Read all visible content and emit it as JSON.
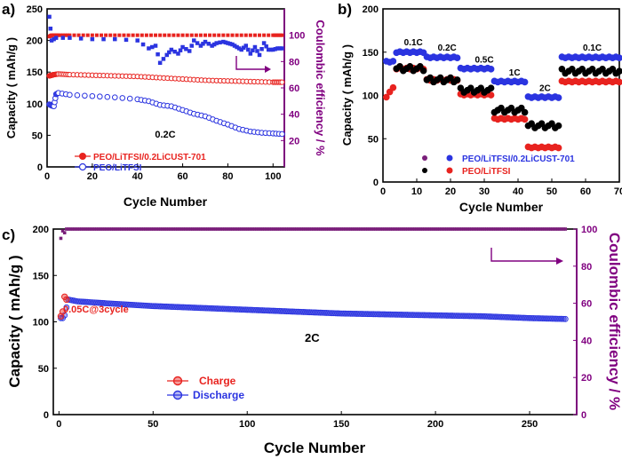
{
  "colors": {
    "red": "#e8231f",
    "blue": "#2b34e0",
    "purple": "#7a1f7a",
    "black": "#000000"
  },
  "chart_data": [
    {
      "panel": "a)",
      "type": "scatter",
      "xlabel": "Cycle Number",
      "ylabel": "Capacity ( mAh/g )",
      "y2label": "Coulombic efficiency / %",
      "xlim": [
        0,
        105
      ],
      "ylim": [
        0,
        250
      ],
      "y2lim": [
        0,
        120
      ],
      "xticks": [
        0,
        20,
        40,
        60,
        80,
        100
      ],
      "yticks": [
        0,
        50,
        100,
        150,
        200,
        250
      ],
      "y2ticks": [
        20,
        40,
        60,
        80,
        100
      ],
      "annotation": "0.2C",
      "legend": [
        "PEO/LiTFSI/0.2LiCUST-701",
        "PEO/LiTFSI"
      ],
      "series": [
        {
          "name": "PEO/LiTFSI/0.2LiCUST-701",
          "axis": "left",
          "marker": "circle",
          "color": "red",
          "x": [
            1,
            2,
            3,
            5,
            10,
            20,
            30,
            40,
            50,
            60,
            70,
            80,
            90,
            100,
            104
          ],
          "y": [
            144,
            145,
            146,
            147,
            146,
            145,
            144,
            143,
            141,
            139,
            137,
            136,
            135,
            134,
            134
          ]
        },
        {
          "name": "PEO/LiTFSI",
          "axis": "left",
          "marker": "circle",
          "color": "blue",
          "x": [
            1,
            2,
            3,
            4,
            5,
            10,
            20,
            30,
            40,
            45,
            50,
            55,
            60,
            65,
            70,
            75,
            80,
            85,
            90,
            95,
            100,
            104
          ],
          "y": [
            99,
            97,
            96,
            115,
            117,
            114,
            112,
            110,
            107,
            104,
            98,
            96,
            90,
            84,
            80,
            73,
            67,
            60,
            56,
            54,
            53,
            52
          ]
        },
        {
          "name": "CE PEO/LiTFSI/0.2LiCUST-701",
          "axis": "right",
          "marker": "square",
          "color": "red",
          "x": [
            1,
            2,
            5,
            10,
            20,
            30,
            40,
            50,
            60,
            70,
            80,
            90,
            100,
            104
          ],
          "y": [
            99,
            100,
            100,
            100,
            100,
            100,
            100,
            100,
            100,
            100,
            100,
            100,
            100,
            100
          ]
        },
        {
          "name": "CE PEO/LiTFSI",
          "axis": "right",
          "marker": "square",
          "color": "blue",
          "x": [
            1,
            2,
            4,
            10,
            20,
            30,
            40,
            45,
            48,
            50,
            53,
            55,
            58,
            60,
            63,
            65,
            68,
            70,
            73,
            75,
            78,
            80,
            82,
            84,
            86,
            88,
            90,
            92,
            94,
            96,
            98,
            100,
            102,
            104
          ],
          "y": [
            114,
            96,
            98,
            98,
            97,
            97,
            96,
            90,
            92,
            79,
            85,
            89,
            86,
            91,
            88,
            96,
            92,
            95,
            92,
            94,
            95,
            94,
            93,
            91,
            89,
            92,
            86,
            91,
            85,
            94,
            89,
            89,
            90,
            90
          ]
        }
      ]
    },
    {
      "panel": "b)",
      "type": "scatter",
      "xlabel": "Cycle Number",
      "ylabel": "Capacity ( mAh/g )",
      "xlim": [
        0,
        70
      ],
      "ylim": [
        0,
        200
      ],
      "xticks": [
        0,
        10,
        20,
        30,
        40,
        50,
        60,
        70
      ],
      "yticks": [
        0,
        50,
        100,
        150,
        200
      ],
      "rate_labels": [
        {
          "text": "0.1C",
          "x": 9,
          "y": 158
        },
        {
          "text": "0.2C",
          "x": 19,
          "y": 152
        },
        {
          "text": "0.5C",
          "x": 30,
          "y": 138
        },
        {
          "text": "1C",
          "x": 39,
          "y": 123
        },
        {
          "text": "2C",
          "x": 48,
          "y": 105
        },
        {
          "text": "0.1C",
          "x": 62,
          "y": 152
        }
      ],
      "legend": [
        "PEO/LiTFSI/0.2LiCUST-701",
        "PEO/LiTFSI"
      ],
      "series": [
        {
          "name": "PEO/LiTFSI/0.2LiCUST-701 charge",
          "marker": "circle",
          "color": "blue",
          "segments": [
            [
              1,
              3,
              139
            ],
            [
              4,
              12,
              150
            ],
            [
              13,
              22,
              144
            ],
            [
              23,
              32,
              131
            ],
            [
              33,
              42,
              116
            ],
            [
              43,
              52,
              98
            ],
            [
              53,
              70,
              144
            ]
          ]
        },
        {
          "name": "PEO/LiTFSI/0.2LiCUST-701 discharge",
          "marker": "circle",
          "color": "red",
          "segments": [
            [
              4,
              12,
              131
            ],
            [
              13,
              22,
              118
            ],
            [
              23,
              32,
              101
            ],
            [
              33,
              42,
              73
            ],
            [
              43,
              52,
              40
            ],
            [
              53,
              70,
              116
            ]
          ]
        },
        {
          "name": "PEO/LiTFSI charge",
          "marker": "circle",
          "color": "black",
          "segments": [
            [
              4,
              12,
              131
            ],
            [
              13,
              22,
              118
            ],
            [
              23,
              32,
              106
            ],
            [
              33,
              42,
              83
            ],
            [
              43,
              52,
              65
            ],
            [
              53,
              70,
              128
            ]
          ]
        },
        {
          "name": "PEO/LiTFSI initial",
          "marker": "circle",
          "color": "red",
          "x": [
            1,
            2,
            3
          ],
          "y": [
            98,
            104,
            109
          ]
        }
      ]
    },
    {
      "panel": "c)",
      "type": "scatter",
      "xlabel": "Cycle Number",
      "ylabel": "Capacity ( mAh/g )",
      "y2label": "Coulombic efficiency / %",
      "xlim": [
        -3,
        275
      ],
      "ylim": [
        0,
        200
      ],
      "y2lim": [
        0,
        100
      ],
      "xticks": [
        0,
        50,
        100,
        150,
        200,
        250
      ],
      "yticks": [
        0,
        50,
        100,
        150,
        200
      ],
      "y2ticks": [
        0,
        20,
        40,
        60,
        80,
        100
      ],
      "annotations": [
        "0.05C@3cycle",
        "2C"
      ],
      "legend": [
        "Charge",
        "Discharge"
      ],
      "series": [
        {
          "name": "Charge",
          "marker": "circle",
          "color": "red",
          "x": [
            1,
            2,
            3,
            4
          ],
          "y": [
            106,
            111,
            127,
            124
          ]
        },
        {
          "name": "Discharge",
          "marker": "circle",
          "color": "blue",
          "x": [
            1,
            2,
            3,
            5,
            10,
            25,
            50,
            75,
            100,
            125,
            150,
            175,
            200,
            225,
            250,
            270
          ],
          "y": [
            104,
            104,
            107,
            124,
            122,
            120,
            117,
            115,
            113,
            111,
            109,
            108,
            107,
            106,
            104,
            103
          ]
        },
        {
          "name": "Coulombic efficiency",
          "axis": "right",
          "marker": "square",
          "color": "purple",
          "x": [
            1,
            2,
            3,
            4,
            10,
            50,
            100,
            150,
            200,
            250,
            270
          ],
          "y": [
            95,
            99,
            98,
            100,
            100,
            100,
            100,
            100,
            100,
            100,
            100
          ]
        }
      ]
    }
  ]
}
